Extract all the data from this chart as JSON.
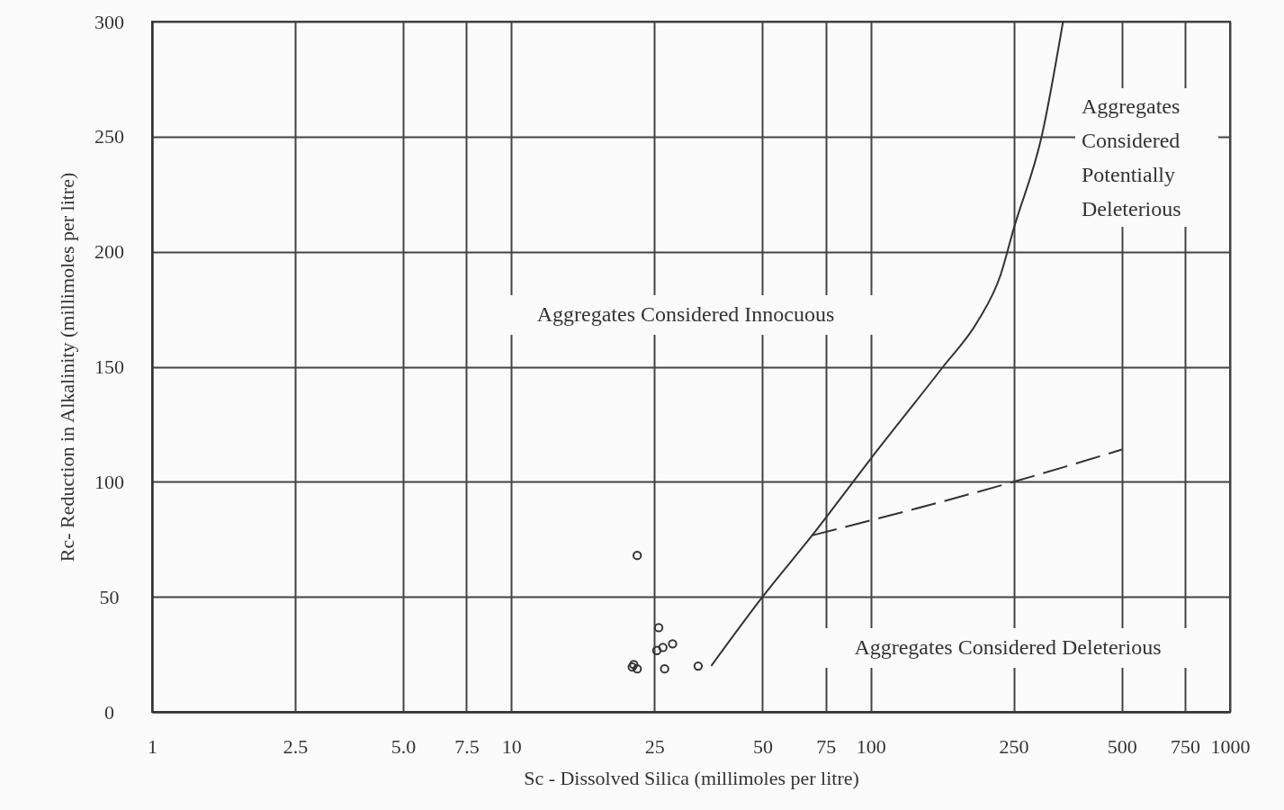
{
  "chart_data": {
    "type": "scatter",
    "xlabel": "Sc - Dissolved Silica (millimoles per litre)",
    "ylabel": "Rc- Reduction in Alkalinity (millimoles per litre)",
    "annotations": [
      "Aggregates Considered Innocuous",
      "Aggregates Considered Potentially Deleterious",
      "Aggregates Considered Deleterious"
    ],
    "log": "x",
    "grid": true,
    "xlim": [
      1,
      1000
    ],
    "ylim": [
      0,
      300
    ],
    "xticks": [
      1,
      2.5,
      {
        "value": 5,
        "label": "5.0"
      },
      7.5,
      10,
      25,
      50,
      75,
      100,
      250,
      500,
      750,
      1000
    ],
    "yticks": [
      0,
      50,
      100,
      150,
      200,
      250,
      300
    ],
    "series": [
      {
        "marker": "circle",
        "color": "#333333",
        "x": [
          22.4,
          25.7,
          28.1,
          26.4,
          25.4,
          21.9,
          21.7,
          22.4,
          26.7,
          33.1
        ],
        "values": [
          68,
          36.6,
          29.6,
          28,
          26.7,
          20.6,
          19.5,
          18.7,
          18.7,
          19.9
        ]
      },
      {
        "type": "line",
        "line_style": "solid",
        "color": "#333333",
        "x": [
          36,
          50,
          68.7,
          100,
          159,
          199,
          230,
          250,
          300,
          343
        ],
        "values": [
          20,
          50,
          76.7,
          110,
          150,
          170,
          190,
          210,
          251,
          300
        ]
      },
      {
        "type": "line",
        "line_style": "dashed",
        "color": "#333333",
        "x": [
          68.7,
          250,
          500
        ],
        "values": [
          76.7,
          100,
          114
        ]
      }
    ]
  }
}
